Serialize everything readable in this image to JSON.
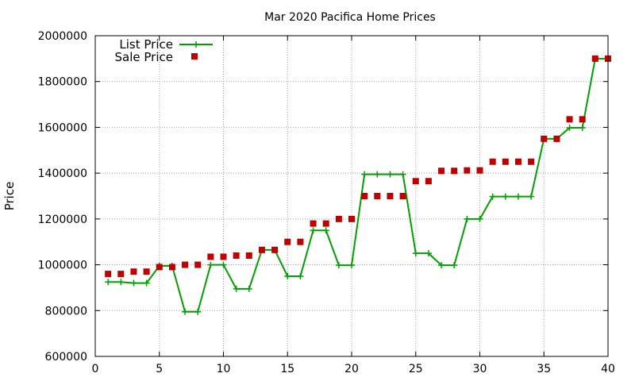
{
  "chart_data": {
    "type": "line",
    "title": "Mar 2020 Pacifica Home Prices",
    "xlabel": "",
    "ylabel": "Price",
    "xlim": [
      0,
      40
    ],
    "ylim": [
      600000,
      2000000
    ],
    "xticks": [
      0,
      5,
      10,
      15,
      20,
      25,
      30,
      35,
      40
    ],
    "yticks": [
      600000,
      800000,
      1000000,
      1200000,
      1400000,
      1600000,
      1800000,
      2000000
    ],
    "grid": true,
    "legend_position": "top-left",
    "x": [
      1,
      2,
      3,
      4,
      5,
      6,
      7,
      8,
      9,
      10,
      11,
      12,
      13,
      14,
      15,
      16,
      17,
      18,
      19,
      20,
      21,
      22,
      23,
      24,
      25,
      26,
      27,
      28,
      29,
      30,
      31,
      32,
      33,
      34,
      35,
      36,
      37,
      38,
      39,
      40
    ],
    "series": [
      {
        "name": "List Price",
        "style": "line+marker",
        "marker": "plus",
        "color": "#00a000",
        "values": [
          925000,
          925000,
          920000,
          920000,
          995000,
          995000,
          795000,
          795000,
          1000000,
          1000000,
          895000,
          895000,
          1065000,
          1065000,
          950000,
          950000,
          1150000,
          1150000,
          998000,
          998000,
          1395000,
          1395000,
          1395000,
          1395000,
          1050000,
          1050000,
          998000,
          998000,
          1200000,
          1200000,
          1298000,
          1298000,
          1298000,
          1298000,
          1550000,
          1550000,
          1598000,
          1598000,
          1900000,
          1900000
        ]
      },
      {
        "name": "Sale Price",
        "style": "marker",
        "marker": "square",
        "color": "#c00000",
        "values": [
          960000,
          960000,
          970000,
          970000,
          990000,
          990000,
          1000000,
          1000000,
          1035000,
          1035000,
          1040000,
          1040000,
          1065000,
          1065000,
          1100000,
          1100000,
          1180000,
          1180000,
          1200000,
          1200000,
          1300000,
          1300000,
          1300000,
          1300000,
          1365000,
          1365000,
          1410000,
          1410000,
          1412000,
          1412000,
          1450000,
          1450000,
          1450000,
          1450000,
          1550000,
          1550000,
          1635000,
          1635000,
          1900000,
          1900000
        ]
      }
    ]
  }
}
